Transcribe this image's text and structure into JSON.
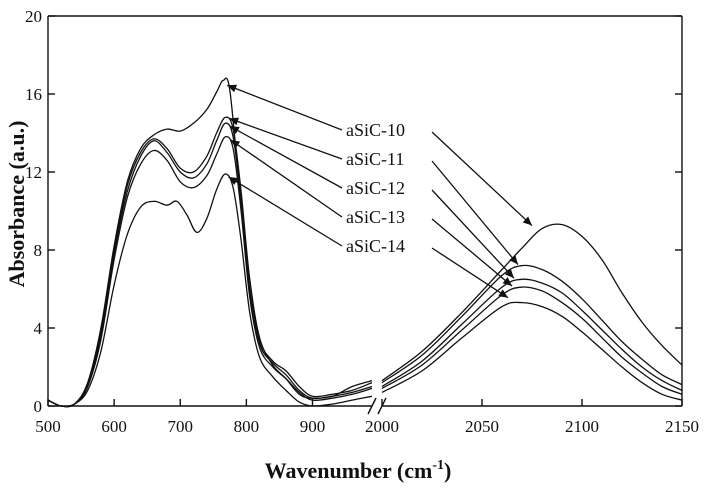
{
  "chart_data": {
    "type": "line",
    "xlabel": "Wavenumber (cm",
    "xlabel_sup": "-1",
    "xlabel_close": ")",
    "ylabel": "Absorbance (a.u.)",
    "ylim": [
      0,
      20
    ],
    "yticks": [
      0,
      4,
      8,
      12,
      16,
      20
    ],
    "grid": false,
    "axis_break": true,
    "x_segments": [
      {
        "xlim": [
          500,
          990
        ],
        "ticks": [
          500,
          600,
          700,
          800,
          900
        ]
      },
      {
        "xlim": [
          2000,
          2150
        ],
        "ticks": [
          2000,
          2050,
          2100,
          2150
        ]
      }
    ],
    "series": [
      {
        "name": "aSiC-10",
        "left": [
          [
            500,
            0.3
          ],
          [
            520,
            0
          ],
          [
            540,
            0.1
          ],
          [
            560,
            1.2
          ],
          [
            580,
            4
          ],
          [
            600,
            8.2
          ],
          [
            620,
            11.5
          ],
          [
            640,
            13.2
          ],
          [
            660,
            13.9
          ],
          [
            680,
            14.2
          ],
          [
            700,
            14.1
          ],
          [
            720,
            14.5
          ],
          [
            740,
            15.2
          ],
          [
            755,
            16.1
          ],
          [
            765,
            16.7
          ],
          [
            775,
            16.2
          ],
          [
            790,
            11
          ],
          [
            805,
            6.5
          ],
          [
            820,
            3.5
          ],
          [
            840,
            2.1
          ],
          [
            860,
            1.4
          ],
          [
            880,
            0.6
          ],
          [
            900,
            0.4
          ],
          [
            930,
            0.5
          ],
          [
            960,
            1
          ],
          [
            990,
            1.3
          ]
        ],
        "right": [
          [
            2000,
            1.3
          ],
          [
            2020,
            2.8
          ],
          [
            2040,
            4.8
          ],
          [
            2060,
            7
          ],
          [
            2070,
            8.1
          ],
          [
            2080,
            9.1
          ],
          [
            2090,
            9.3
          ],
          [
            2100,
            8.7
          ],
          [
            2110,
            7.5
          ],
          [
            2120,
            5.8
          ],
          [
            2130,
            4.3
          ],
          [
            2140,
            3.1
          ],
          [
            2150,
            2.1
          ]
        ],
        "label_anchor": [
          2076,
          9.1
        ]
      },
      {
        "name": "aSiC-11",
        "left": [
          [
            500,
            0.3
          ],
          [
            520,
            0
          ],
          [
            540,
            0.1
          ],
          [
            560,
            1.1
          ],
          [
            580,
            3.8
          ],
          [
            600,
            8
          ],
          [
            620,
            11.3
          ],
          [
            640,
            13
          ],
          [
            660,
            13.7
          ],
          [
            680,
            13.2
          ],
          [
            700,
            12.2
          ],
          [
            720,
            12
          ],
          [
            740,
            12.8
          ],
          [
            755,
            14
          ],
          [
            768,
            14.8
          ],
          [
            780,
            14.2
          ],
          [
            792,
            11
          ],
          [
            805,
            6.5
          ],
          [
            820,
            3.4
          ],
          [
            840,
            2.3
          ],
          [
            860,
            1.8
          ],
          [
            880,
            1
          ],
          [
            900,
            0.5
          ],
          [
            930,
            0.6
          ],
          [
            960,
            0.8
          ],
          [
            990,
            1.2
          ]
        ],
        "right": [
          [
            2000,
            1.2
          ],
          [
            2020,
            2.6
          ],
          [
            2040,
            4.6
          ],
          [
            2060,
            6.7
          ],
          [
            2070,
            7.2
          ],
          [
            2080,
            7
          ],
          [
            2090,
            6.4
          ],
          [
            2100,
            5.5
          ],
          [
            2110,
            4.4
          ],
          [
            2120,
            3.3
          ],
          [
            2130,
            2.4
          ],
          [
            2140,
            1.6
          ],
          [
            2150,
            1.1
          ]
        ],
        "label_anchor": [
          2069,
          7.1
        ]
      },
      {
        "name": "aSiC-12",
        "left": [
          [
            500,
            0.3
          ],
          [
            520,
            0
          ],
          [
            540,
            0.1
          ],
          [
            560,
            1
          ],
          [
            580,
            3.6
          ],
          [
            600,
            7.8
          ],
          [
            620,
            11
          ],
          [
            640,
            12.8
          ],
          [
            660,
            13.6
          ],
          [
            680,
            13
          ],
          [
            700,
            12
          ],
          [
            720,
            11.7
          ],
          [
            740,
            12.4
          ],
          [
            755,
            13.6
          ],
          [
            768,
            14.5
          ],
          [
            780,
            13.8
          ],
          [
            792,
            10.5
          ],
          [
            805,
            6
          ],
          [
            820,
            3.2
          ],
          [
            840,
            2.2
          ],
          [
            860,
            1.6
          ],
          [
            880,
            0.8
          ],
          [
            900,
            0.4
          ],
          [
            930,
            0.5
          ],
          [
            960,
            0.7
          ],
          [
            990,
            1
          ]
        ],
        "right": [
          [
            2000,
            1
          ],
          [
            2020,
            2.3
          ],
          [
            2040,
            4.2
          ],
          [
            2060,
            6.1
          ],
          [
            2070,
            6.5
          ],
          [
            2080,
            6.3
          ],
          [
            2090,
            5.8
          ],
          [
            2100,
            4.9
          ],
          [
            2110,
            3.9
          ],
          [
            2120,
            2.9
          ],
          [
            2130,
            2
          ],
          [
            2140,
            1.3
          ],
          [
            2150,
            0.8
          ]
        ],
        "label_anchor": [
          2067,
          6.4
        ]
      },
      {
        "name": "aSiC-13",
        "left": [
          [
            500,
            0.3
          ],
          [
            520,
            0
          ],
          [
            540,
            0.1
          ],
          [
            560,
            1
          ],
          [
            580,
            3.4
          ],
          [
            600,
            7.5
          ],
          [
            620,
            10.7
          ],
          [
            640,
            12.4
          ],
          [
            660,
            13.1
          ],
          [
            680,
            12.6
          ],
          [
            700,
            11.5
          ],
          [
            720,
            11.2
          ],
          [
            740,
            11.8
          ],
          [
            755,
            12.9
          ],
          [
            768,
            13.8
          ],
          [
            780,
            13.2
          ],
          [
            792,
            10
          ],
          [
            805,
            5.6
          ],
          [
            820,
            3
          ],
          [
            840,
            2
          ],
          [
            860,
            1.4
          ],
          [
            880,
            0.7
          ],
          [
            900,
            0.3
          ],
          [
            930,
            0.4
          ],
          [
            960,
            0.6
          ],
          [
            990,
            0.9
          ]
        ],
        "right": [
          [
            2000,
            0.9
          ],
          [
            2020,
            2.1
          ],
          [
            2040,
            3.9
          ],
          [
            2060,
            5.7
          ],
          [
            2070,
            6.1
          ],
          [
            2080,
            5.9
          ],
          [
            2090,
            5.3
          ],
          [
            2100,
            4.5
          ],
          [
            2110,
            3.5
          ],
          [
            2120,
            2.5
          ],
          [
            2130,
            1.7
          ],
          [
            2140,
            1
          ],
          [
            2150,
            0.6
          ]
        ],
        "label_anchor": [
          2066,
          6
        ]
      },
      {
        "name": "aSiC-14",
        "left": [
          [
            500,
            0.3
          ],
          [
            520,
            0
          ],
          [
            540,
            0.1
          ],
          [
            560,
            0.8
          ],
          [
            580,
            2.8
          ],
          [
            600,
            6.2
          ],
          [
            620,
            8.8
          ],
          [
            640,
            10.2
          ],
          [
            660,
            10.5
          ],
          [
            680,
            10.3
          ],
          [
            695,
            10.5
          ],
          [
            710,
            9.8
          ],
          [
            725,
            8.9
          ],
          [
            740,
            9.6
          ],
          [
            755,
            11.1
          ],
          [
            768,
            11.9
          ],
          [
            780,
            11.2
          ],
          [
            792,
            8.5
          ],
          [
            805,
            4.8
          ],
          [
            820,
            2.5
          ],
          [
            840,
            1.5
          ],
          [
            860,
            0.8
          ],
          [
            880,
            0.2
          ],
          [
            900,
            0
          ],
          [
            930,
            0.1
          ],
          [
            960,
            0.3
          ],
          [
            990,
            0.5
          ]
        ],
        "right": [
          [
            2000,
            0.7
          ],
          [
            2020,
            1.8
          ],
          [
            2040,
            3.5
          ],
          [
            2060,
            5.1
          ],
          [
            2070,
            5.3
          ],
          [
            2080,
            5.1
          ],
          [
            2090,
            4.6
          ],
          [
            2100,
            3.8
          ],
          [
            2110,
            2.9
          ],
          [
            2120,
            2
          ],
          [
            2130,
            1.2
          ],
          [
            2140,
            0.6
          ],
          [
            2150,
            0.3
          ]
        ],
        "label_anchor": [
          2064,
          5.4
        ]
      }
    ]
  }
}
